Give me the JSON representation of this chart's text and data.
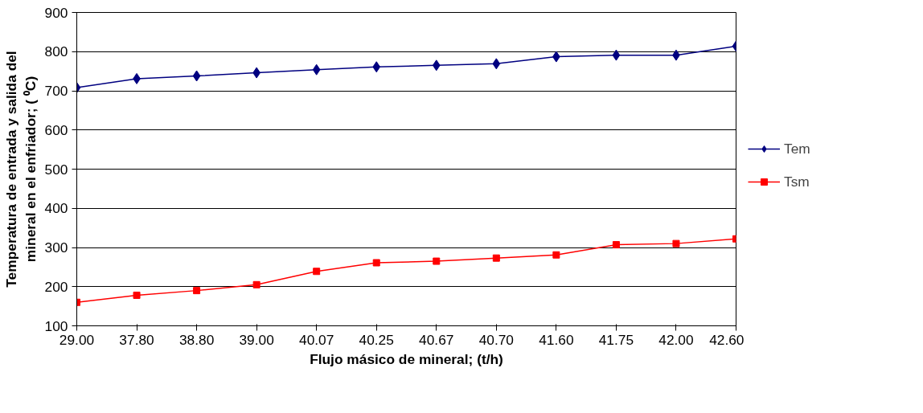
{
  "chart_data": {
    "type": "line",
    "xlabel": "Flujo másico de mineral; (t/h)",
    "ylabel": "Temperatura de entrada y salida del\nmineral en el enfriador; ( ⁰C)",
    "categories": [
      "29.00",
      "37.80",
      "38.80",
      "39.00",
      "40.07",
      "40.25",
      "40.67",
      "40.70",
      "41.60",
      "41.75",
      "42.00",
      "42.60"
    ],
    "series": [
      {
        "name": "Tem",
        "color": "#000080",
        "marker": "diamond",
        "values": [
          708,
          731,
          738,
          746,
          754,
          761,
          765,
          769,
          787,
          791,
          791,
          814
        ]
      },
      {
        "name": "Tsm",
        "color": "#ff0000",
        "marker": "square",
        "values": [
          160,
          178,
          190,
          205,
          239,
          261,
          265,
          273,
          281,
          307,
          310,
          322
        ]
      }
    ],
    "ylim": [
      100,
      900
    ],
    "yticks": [
      100,
      200,
      300,
      400,
      500,
      600,
      700,
      800,
      900
    ],
    "grid": "y",
    "legend": "right",
    "line_style": "solid"
  }
}
